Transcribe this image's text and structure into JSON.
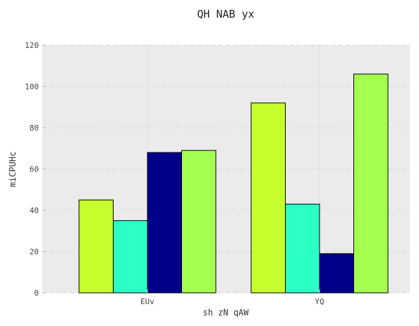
{
  "chart_data": {
    "type": "bar",
    "title": "QH NAB yx",
    "xlabel": "sh zN qAW",
    "ylabel": "miCPUHc",
    "categories": [
      "EUv",
      "YQ"
    ],
    "series": [
      {
        "color": "#c6ff2d",
        "values": [
          45,
          92
        ]
      },
      {
        "color": "#2cffc6",
        "values": [
          35,
          43
        ]
      },
      {
        "color": "#00008b",
        "values": [
          68,
          19
        ]
      },
      {
        "color": "#a5ff4f",
        "values": [
          69,
          106
        ]
      }
    ],
    "ylim": [
      0,
      120
    ],
    "yticks": [
      0,
      20,
      40,
      60,
      80,
      100,
      120
    ],
    "grid": true,
    "legend": "none",
    "background_color": "#ebebeb"
  }
}
